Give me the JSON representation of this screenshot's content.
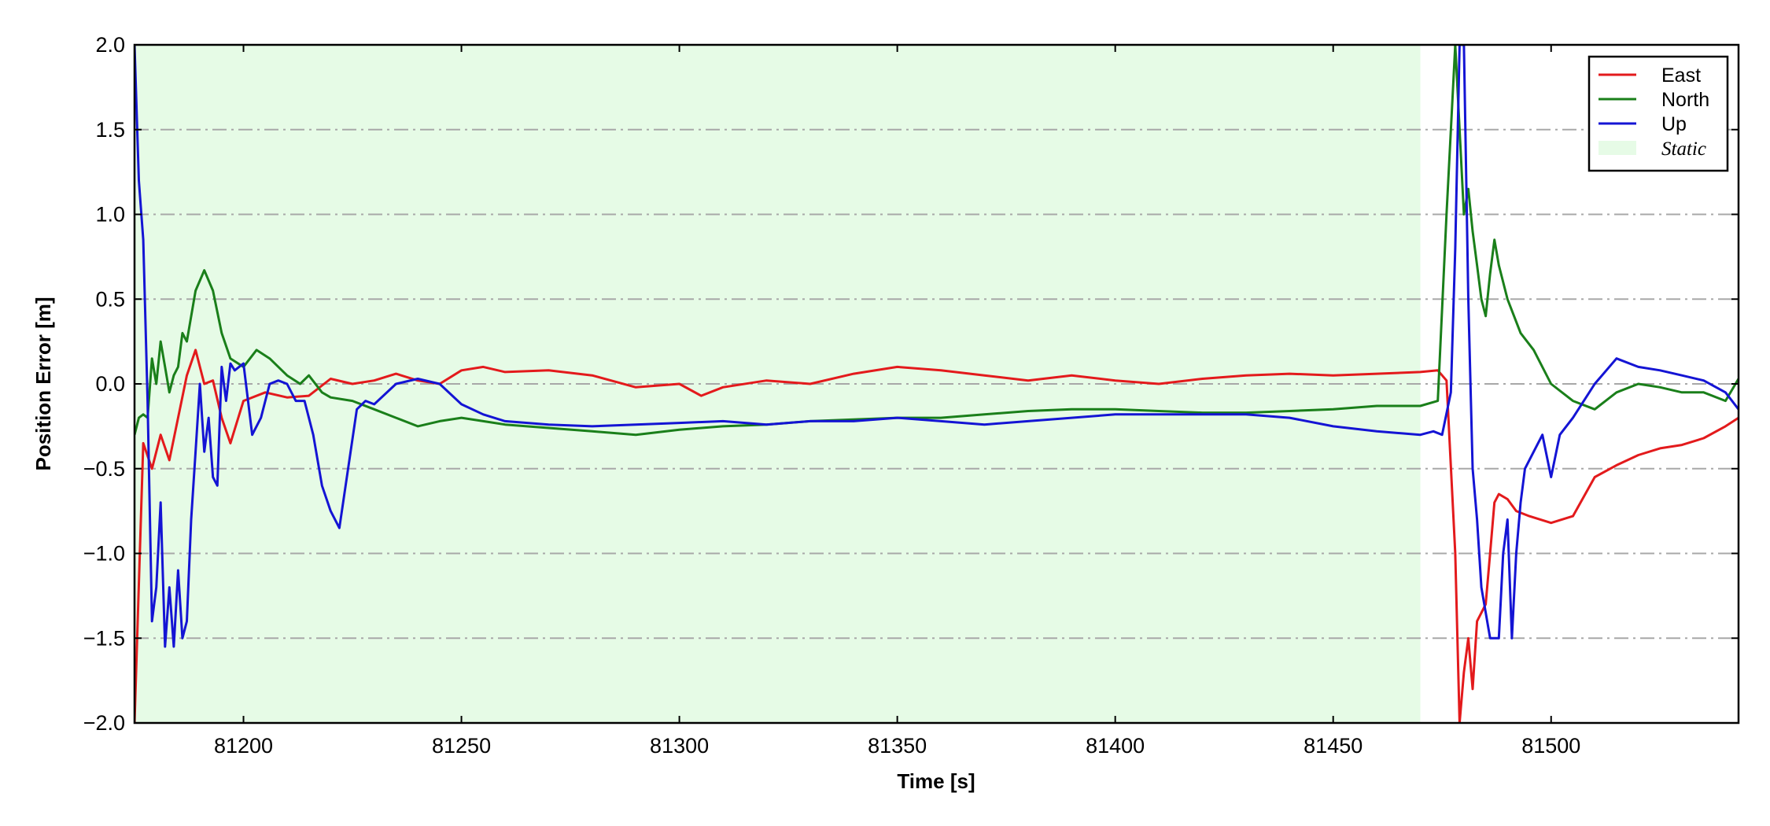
{
  "chart_data": {
    "type": "line",
    "xlabel": "Time [s]",
    "ylabel": "Position Error [m]",
    "xlim": [
      81175,
      81543
    ],
    "ylim": [
      -2.0,
      2.0
    ],
    "xticks": [
      81200,
      81250,
      81300,
      81350,
      81400,
      81450,
      81500
    ],
    "xtick_labels": [
      "81200",
      "81250",
      "81300",
      "81350",
      "81400",
      "81450",
      "81500"
    ],
    "yticks": [
      -2.0,
      -1.5,
      -1.0,
      -0.5,
      0.0,
      0.5,
      1.0,
      1.5,
      2.0
    ],
    "ytick_labels": [
      "−2.0",
      "−1.5",
      "−1.0",
      "−0.5",
      "0.0",
      "0.5",
      "1.0",
      "1.5",
      "2.0"
    ],
    "grid": "horizontal dash-dot",
    "legend_position": "top-right",
    "static_span": {
      "label": "Static",
      "start": 81175,
      "end": 81470,
      "color": "#e6fbe6"
    },
    "series": [
      {
        "name": "East",
        "color": "#e31a1c",
        "x": [
          81175,
          81177,
          81179,
          81181,
          81183,
          81185,
          81187,
          81189,
          81191,
          81193,
          81195,
          81197,
          81200,
          81205,
          81210,
          81215,
          81220,
          81225,
          81230,
          81235,
          81240,
          81245,
          81250,
          81255,
          81260,
          81270,
          81280,
          81290,
          81300,
          81305,
          81310,
          81320,
          81330,
          81340,
          81350,
          81360,
          81370,
          81380,
          81390,
          81400,
          81410,
          81420,
          81430,
          81440,
          81450,
          81460,
          81470,
          81474,
          81476,
          81478,
          81479,
          81480,
          81481,
          81482,
          81483,
          81484,
          81485,
          81486,
          81487,
          81488,
          81490,
          81492,
          81495,
          81500,
          81505,
          81510,
          81515,
          81520,
          81525,
          81530,
          81535,
          81540,
          81543
        ],
        "y": [
          -2.0,
          -0.35,
          -0.5,
          -0.3,
          -0.45,
          -0.2,
          0.05,
          0.2,
          0.0,
          0.02,
          -0.2,
          -0.35,
          -0.1,
          -0.05,
          -0.08,
          -0.07,
          0.03,
          0.0,
          0.02,
          0.06,
          0.02,
          0.0,
          0.08,
          0.1,
          0.07,
          0.08,
          0.05,
          -0.02,
          0.0,
          -0.07,
          -0.02,
          0.02,
          0.0,
          0.06,
          0.1,
          0.08,
          0.05,
          0.02,
          0.05,
          0.02,
          0.0,
          0.03,
          0.05,
          0.06,
          0.05,
          0.06,
          0.07,
          0.08,
          0.02,
          -1.0,
          -2.0,
          -1.7,
          -1.5,
          -1.8,
          -1.4,
          -1.35,
          -1.3,
          -1.0,
          -0.7,
          -0.65,
          -0.68,
          -0.75,
          -0.78,
          -0.82,
          -0.78,
          -0.55,
          -0.48,
          -0.42,
          -0.38,
          -0.36,
          -0.32,
          -0.25,
          -0.2
        ]
      },
      {
        "name": "North",
        "color": "#1a7f1a",
        "x": [
          81175,
          81176,
          81177,
          81178,
          81179,
          81180,
          81181,
          81182,
          81183,
          81184,
          81185,
          81186,
          81187,
          81189,
          81191,
          81193,
          81195,
          81197,
          81200,
          81203,
          81206,
          81210,
          81213,
          81215,
          81218,
          81220,
          81225,
          81230,
          81235,
          81240,
          81245,
          81250,
          81255,
          81260,
          81270,
          81280,
          81290,
          81300,
          81310,
          81320,
          81330,
          81340,
          81350,
          81360,
          81370,
          81380,
          81390,
          81400,
          81410,
          81420,
          81430,
          81440,
          81450,
          81460,
          81470,
          81474,
          81476,
          81478,
          81479,
          81480,
          81481,
          81482,
          81483,
          81484,
          81485,
          81486,
          81487,
          81488,
          81490,
          81493,
          81496,
          81500,
          81505,
          81510,
          81515,
          81520,
          81525,
          81530,
          81535,
          81540,
          81543
        ],
        "y": [
          -0.3,
          -0.2,
          -0.18,
          -0.2,
          0.15,
          0.0,
          0.25,
          0.1,
          -0.05,
          0.05,
          0.1,
          0.3,
          0.25,
          0.55,
          0.67,
          0.55,
          0.3,
          0.15,
          0.1,
          0.2,
          0.15,
          0.05,
          0.0,
          0.05,
          -0.05,
          -0.08,
          -0.1,
          -0.15,
          -0.2,
          -0.25,
          -0.22,
          -0.2,
          -0.22,
          -0.24,
          -0.26,
          -0.28,
          -0.3,
          -0.27,
          -0.25,
          -0.24,
          -0.22,
          -0.21,
          -0.2,
          -0.2,
          -0.18,
          -0.16,
          -0.15,
          -0.15,
          -0.16,
          -0.17,
          -0.17,
          -0.16,
          -0.15,
          -0.13,
          -0.13,
          -0.1,
          1.0,
          2.0,
          1.5,
          1.0,
          1.15,
          0.9,
          0.7,
          0.5,
          0.4,
          0.65,
          0.85,
          0.7,
          0.5,
          0.3,
          0.2,
          0.0,
          -0.1,
          -0.15,
          -0.05,
          0.0,
          -0.02,
          -0.05,
          -0.05,
          -0.1,
          0.03
        ]
      },
      {
        "name": "Up",
        "color": "#1414d4",
        "x": [
          81175,
          81176,
          81177,
          81178,
          81179,
          81180,
          81181,
          81182,
          81183,
          81184,
          81185,
          81186,
          81187,
          81188,
          81189,
          81190,
          81191,
          81192,
          81193,
          81194,
          81195,
          81196,
          81197,
          81198,
          81200,
          81202,
          81204,
          81206,
          81208,
          81210,
          81212,
          81214,
          81216,
          81218,
          81220,
          81222,
          81224,
          81226,
          81228,
          81230,
          81235,
          81240,
          81245,
          81250,
          81255,
          81260,
          81270,
          81280,
          81290,
          81300,
          81310,
          81320,
          81330,
          81340,
          81350,
          81360,
          81370,
          81380,
          81390,
          81400,
          81410,
          81420,
          81430,
          81440,
          81450,
          81460,
          81470,
          81473,
          81475,
          81477,
          81478,
          81479,
          81480,
          81481,
          81482,
          81483,
          81484,
          81486,
          81488,
          81489,
          81490,
          81491,
          81492,
          81493,
          81494,
          81496,
          81498,
          81500,
          81502,
          81505,
          81510,
          81515,
          81520,
          81525,
          81530,
          81535,
          81540,
          81543
        ],
        "y": [
          2.0,
          1.2,
          0.85,
          -0.1,
          -1.4,
          -1.2,
          -0.7,
          -1.55,
          -1.2,
          -1.55,
          -1.1,
          -1.5,
          -1.4,
          -0.8,
          -0.4,
          0.0,
          -0.4,
          -0.2,
          -0.55,
          -0.6,
          0.1,
          -0.1,
          0.12,
          0.08,
          0.12,
          -0.3,
          -0.2,
          0.0,
          0.02,
          0.0,
          -0.1,
          -0.1,
          -0.3,
          -0.6,
          -0.75,
          -0.85,
          -0.5,
          -0.15,
          -0.1,
          -0.12,
          0.0,
          0.03,
          0.0,
          -0.12,
          -0.18,
          -0.22,
          -0.24,
          -0.25,
          -0.24,
          -0.23,
          -0.22,
          -0.24,
          -0.22,
          -0.22,
          -0.2,
          -0.22,
          -0.24,
          -0.22,
          -0.2,
          -0.18,
          -0.18,
          -0.18,
          -0.18,
          -0.2,
          -0.25,
          -0.28,
          -0.3,
          -0.28,
          -0.3,
          -0.05,
          0.8,
          2.0,
          2.0,
          0.5,
          -0.5,
          -0.8,
          -1.2,
          -1.5,
          -1.5,
          -1.0,
          -0.8,
          -1.5,
          -1.0,
          -0.7,
          -0.5,
          -0.4,
          -0.3,
          -0.55,
          -0.3,
          -0.2,
          0.0,
          0.15,
          0.1,
          0.08,
          0.05,
          0.02,
          -0.05,
          -0.15
        ]
      }
    ]
  }
}
